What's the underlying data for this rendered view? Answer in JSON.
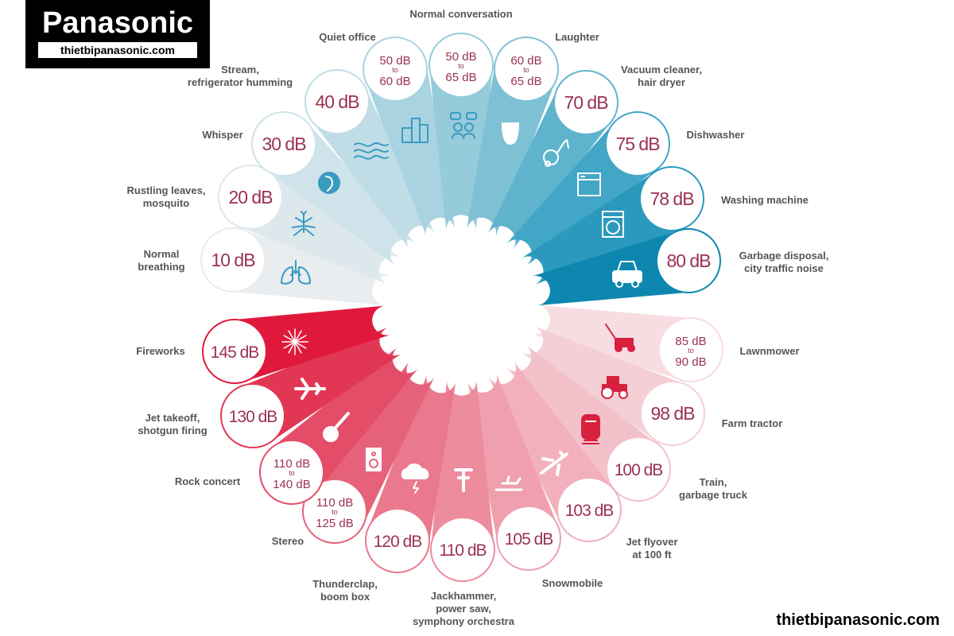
{
  "brand": {
    "name": "Panasonic",
    "site": "thietbipanasonic.com"
  },
  "footer_site": "thietbipanasonic.com",
  "quiet": [
    {
      "value": "10 dB",
      "label": "Normal\nbreathing",
      "icon": "lungs-icon"
    },
    {
      "value": "20 dB",
      "label": "Rustling leaves,\nmosquito",
      "icon": "mosquito-icon"
    },
    {
      "value": "30 dB",
      "label": "Whisper",
      "icon": "whisper-icon"
    },
    {
      "value": "40 dB",
      "label": "Stream,\nrefrigerator humming",
      "icon": "wave-icon"
    },
    {
      "value_top": "50 dB",
      "value_mid": "to",
      "value_bot": "60 dB",
      "label": "Quiet office",
      "icon": "office-building-icon"
    },
    {
      "value_top": "50 dB",
      "value_mid": "to",
      "value_bot": "65 dB",
      "label": "Normal conversation",
      "icon": "conversation-icon"
    },
    {
      "value_top": "60 dB",
      "value_mid": "to",
      "value_bot": "65 dB",
      "label": "Laughter",
      "icon": "theater-mask-icon"
    },
    {
      "value": "70 dB",
      "label": "Vacuum cleaner,\nhair dryer",
      "icon": "vacuum-cleaner-icon"
    },
    {
      "value": "75 dB",
      "label": "Dishwasher",
      "icon": "dishwasher-icon"
    },
    {
      "value": "78 dB",
      "label": "Washing machine",
      "icon": "washing-machine-icon"
    },
    {
      "value": "80 dB",
      "label": "Garbage disposal,\ncity traffic noise",
      "icon": "car-icon"
    }
  ],
  "loud": [
    {
      "value_top": "85 dB",
      "value_mid": "to",
      "value_bot": "90 dB",
      "label": "Lawnmower",
      "icon": "lawnmower-icon"
    },
    {
      "value": "98 dB",
      "label": "Farm tractor",
      "icon": "tractor-icon"
    },
    {
      "value": "100 dB",
      "label": "Train,\ngarbage truck",
      "icon": "train-icon"
    },
    {
      "value": "103 dB",
      "label": "Jet flyover\nat 100 ft",
      "icon": "airplane-icon"
    },
    {
      "value": "105 dB",
      "label": "Snowmobile",
      "icon": "snowmobile-icon"
    },
    {
      "value": "110 dB",
      "label": "Jackhammer,\npower saw,\nsymphony orchestra",
      "icon": "jackhammer-icon"
    },
    {
      "value": "120 dB",
      "label": "Thunderclap,\nboom box",
      "icon": "thunder-cloud-icon"
    },
    {
      "value_top": "110 dB",
      "value_mid": "to",
      "value_bot": "125 dB",
      "label": "Stereo",
      "icon": "speaker-icon"
    },
    {
      "value_top": "110 dB",
      "value_mid": "to",
      "value_bot": "140 dB",
      "label": "Rock concert",
      "icon": "guitar-icon"
    },
    {
      "value": "130 dB",
      "label": "Jet takeoff,\nshotgun firing",
      "icon": "jet-icon"
    },
    {
      "value": "145 dB",
      "label": "Fireworks",
      "icon": "fireworks-icon"
    }
  ],
  "colors": {
    "quiet": [
      "#e9edf0",
      "#dde8ec",
      "#cfe3ea",
      "#c0dde7",
      "#a9d3e0",
      "#95cbdb",
      "#7ec1d5",
      "#5fb3cd",
      "#42a6c6",
      "#2b99bd",
      "#0e87b0"
    ],
    "loud": [
      "#f7dde2",
      "#f5cfd6",
      "#f3c1ca",
      "#f1b0bc",
      "#ef9fae",
      "#ec8c9d",
      "#ea798d",
      "#e6627a",
      "#e44d68",
      "#e13654",
      "#e0193c"
    ],
    "quiet_text": "#9b3253",
    "loud_text": "#9b3253",
    "label_text": "#555555"
  }
}
